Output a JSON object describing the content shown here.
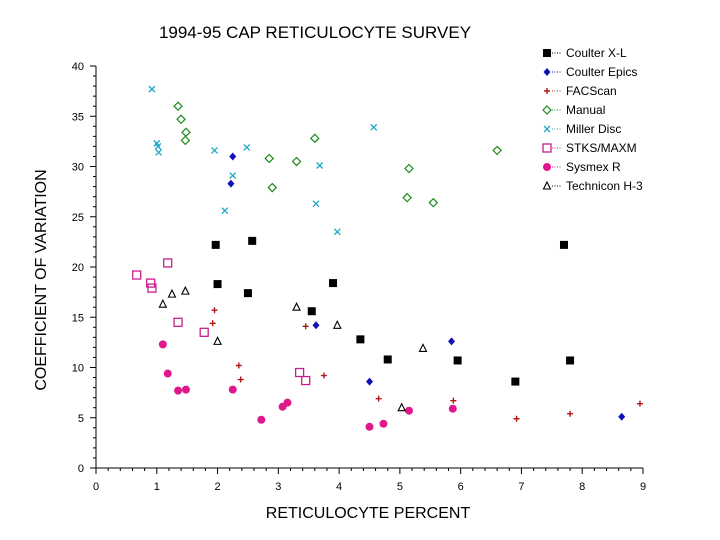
{
  "chart_data": {
    "type": "scatter",
    "title": "1994-95 CAP RETICULOCYTE SURVEY",
    "xlabel": "RETICULOCYTE PERCENT",
    "ylabel": "COEFFICIENT OF VARIATION",
    "xlim": [
      0,
      9
    ],
    "ylim": [
      0,
      40
    ],
    "xticks": [
      "0",
      "1",
      "2",
      "3",
      "4",
      "5",
      "6",
      "7",
      "8",
      "9"
    ],
    "yticks": [
      "0",
      "5",
      "10",
      "15",
      "20",
      "25",
      "30",
      "35",
      "40"
    ],
    "legend_position": "top-right",
    "series": [
      {
        "name": "Coulter X-L",
        "marker": "square",
        "color": "#000000",
        "points": [
          [
            1.97,
            22.2
          ],
          [
            2.0,
            18.3
          ],
          [
            2.57,
            22.6
          ],
          [
            2.5,
            17.4
          ],
          [
            3.55,
            15.6
          ],
          [
            3.9,
            18.4
          ],
          [
            4.35,
            12.8
          ],
          [
            4.8,
            10.8
          ],
          [
            5.95,
            10.7
          ],
          [
            6.9,
            8.6
          ],
          [
            7.7,
            22.2
          ],
          [
            7.8,
            10.7
          ]
        ]
      },
      {
        "name": "Coulter Epics",
        "marker": "diamond-filled",
        "color": "#1010b8",
        "points": [
          [
            2.25,
            31.0
          ],
          [
            2.22,
            28.3
          ],
          [
            3.62,
            14.2
          ],
          [
            4.5,
            8.6
          ],
          [
            5.85,
            12.6
          ],
          [
            8.65,
            5.1
          ]
        ]
      },
      {
        "name": "FACScan",
        "marker": "plus",
        "color": "#b01818",
        "points": [
          [
            1.95,
            15.7
          ],
          [
            1.92,
            14.4
          ],
          [
            2.35,
            10.2
          ],
          [
            2.38,
            8.8
          ],
          [
            3.45,
            14.1
          ],
          [
            3.75,
            9.2
          ],
          [
            4.65,
            6.9
          ],
          [
            5.88,
            6.7
          ],
          [
            6.92,
            4.9
          ],
          [
            7.8,
            5.4
          ],
          [
            8.95,
            6.4
          ]
        ]
      },
      {
        "name": "Manual",
        "marker": "diamond-open",
        "color": "#1c8a1c",
        "points": [
          [
            1.35,
            36.0
          ],
          [
            1.4,
            34.7
          ],
          [
            1.48,
            33.4
          ],
          [
            1.47,
            32.6
          ],
          [
            2.85,
            30.8
          ],
          [
            2.9,
            27.9
          ],
          [
            3.3,
            30.5
          ],
          [
            3.6,
            32.8
          ],
          [
            5.15,
            29.8
          ],
          [
            5.12,
            26.9
          ],
          [
            5.55,
            26.4
          ],
          [
            6.6,
            31.6
          ]
        ]
      },
      {
        "name": "Miller Disc",
        "marker": "x",
        "color": "#1aa8c8",
        "points": [
          [
            0.92,
            37.7
          ],
          [
            1.0,
            32.3
          ],
          [
            1.02,
            32.0
          ],
          [
            1.03,
            31.4
          ],
          [
            1.95,
            31.6
          ],
          [
            2.12,
            25.6
          ],
          [
            2.25,
            29.1
          ],
          [
            2.48,
            31.9
          ],
          [
            3.62,
            26.3
          ],
          [
            3.68,
            30.1
          ],
          [
            3.97,
            23.5
          ],
          [
            4.57,
            33.9
          ]
        ]
      },
      {
        "name": "STKS/MAXM",
        "marker": "square-open",
        "color": "#c81e8c",
        "points": [
          [
            0.67,
            19.2
          ],
          [
            0.9,
            18.4
          ],
          [
            0.92,
            17.9
          ],
          [
            1.18,
            20.4
          ],
          [
            1.35,
            14.5
          ],
          [
            1.78,
            13.5
          ],
          [
            3.35,
            9.5
          ],
          [
            3.45,
            8.7
          ]
        ]
      },
      {
        "name": "Sysmex R",
        "marker": "circle-filled",
        "color": "#e0188c",
        "points": [
          [
            1.1,
            12.3
          ],
          [
            1.18,
            9.4
          ],
          [
            1.35,
            7.7
          ],
          [
            1.48,
            7.8
          ],
          [
            2.25,
            7.8
          ],
          [
            2.72,
            4.8
          ],
          [
            3.07,
            6.1
          ],
          [
            3.15,
            6.5
          ],
          [
            4.5,
            4.1
          ],
          [
            4.73,
            4.4
          ],
          [
            5.15,
            5.7
          ],
          [
            5.87,
            5.9
          ]
        ]
      },
      {
        "name": "Technicon H-3",
        "marker": "triangle-open",
        "color": "#000000",
        "points": [
          [
            1.1,
            16.3
          ],
          [
            1.25,
            17.3
          ],
          [
            1.47,
            17.6
          ],
          [
            2.0,
            12.6
          ],
          [
            3.3,
            16.0
          ],
          [
            3.97,
            14.2
          ],
          [
            5.38,
            11.9
          ],
          [
            5.03,
            6.0
          ]
        ]
      }
    ]
  }
}
